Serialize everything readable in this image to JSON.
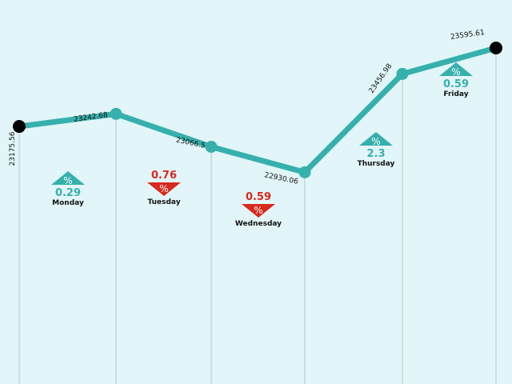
{
  "chart_data": {
    "type": "line",
    "x": [
      "",
      "Monday",
      "Tuesday",
      "Wednesday",
      "Thursday",
      "Friday"
    ],
    "values": [
      23175.56,
      23242.68,
      23066.5,
      22930.06,
      23456.98,
      23595.61
    ],
    "value_labels": [
      "23175.56",
      "23242.68",
      "23066.5",
      "22930.06",
      "23456.98",
      "23595.61"
    ],
    "changes": [
      {
        "day": "Monday",
        "percent": "0.29",
        "direction": "up"
      },
      {
        "day": "Tuesday",
        "percent": "0.76",
        "direction": "down"
      },
      {
        "day": "Wednesday",
        "percent": "0.59",
        "direction": "down"
      },
      {
        "day": "Thursday",
        "percent": "2.3",
        "direction": "up"
      },
      {
        "day": "Friday",
        "percent": "0.59",
        "direction": "up"
      }
    ],
    "percent_symbol": "%",
    "ylim": [
      22700,
      23750
    ],
    "grid": false,
    "colors": {
      "background": "#e2f6f9",
      "line": "#36b0ad",
      "up": "#36b0ad",
      "down": "#d9281c",
      "endpoint": "#000000",
      "drop_line": "#b8c6c8"
    }
  }
}
